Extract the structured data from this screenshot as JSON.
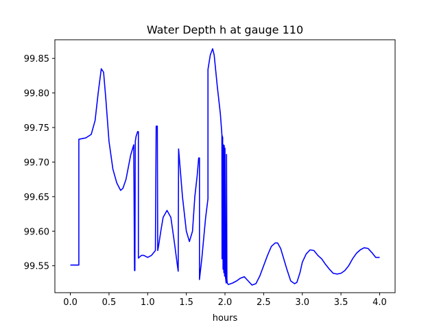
{
  "chart_data": {
    "type": "line",
    "title": "Water Depth h at gauge 110",
    "xlabel": "hours",
    "ylabel": "",
    "xlim": [
      -0.2,
      4.2
    ],
    "ylim": [
      99.511,
      99.877
    ],
    "x_ticks": [
      0.0,
      0.5,
      1.0,
      1.5,
      2.0,
      2.5,
      3.0,
      3.5,
      4.0
    ],
    "x_tick_labels": [
      "0.0",
      "0.5",
      "1.0",
      "1.5",
      "2.0",
      "2.5",
      "3.0",
      "3.5",
      "4.0"
    ],
    "y_ticks": [
      99.55,
      99.6,
      99.65,
      99.7,
      99.75,
      99.8,
      99.85
    ],
    "y_tick_labels": [
      "99.55",
      "99.60",
      "99.65",
      "99.70",
      "99.75",
      "99.80",
      "99.85"
    ],
    "grid": false,
    "colors": {
      "line": "#0000ff",
      "axes": "#000000",
      "background": "#ffffff"
    },
    "series": [
      {
        "x": [
          0.0,
          0.11,
          0.11,
          0.2,
          0.27,
          0.32,
          0.36,
          0.4,
          0.43,
          0.46,
          0.5,
          0.55,
          0.6,
          0.65,
          0.68,
          0.72,
          0.78,
          0.82,
          0.83,
          0.835,
          0.84,
          0.85,
          0.87,
          0.88,
          0.88,
          0.92,
          0.95,
          1.0,
          1.05,
          1.1,
          1.11,
          1.125,
          1.13,
          1.14,
          1.17,
          1.2,
          1.25,
          1.3,
          1.35,
          1.385,
          1.395,
          1.4,
          1.45,
          1.5,
          1.54,
          1.58,
          1.61,
          1.64,
          1.66,
          1.67,
          1.67,
          1.7,
          1.75,
          1.78,
          1.78,
          1.81,
          1.84,
          1.86,
          1.9,
          1.94,
          1.96,
          1.962,
          1.965,
          1.968,
          1.97,
          1.975,
          1.98,
          1.985,
          1.99,
          1.995,
          2.0,
          2.005,
          2.01,
          2.015,
          2.02,
          2.025,
          2.03,
          2.035,
          2.04,
          2.05,
          2.1,
          2.15,
          2.2,
          2.25,
          2.3,
          2.35,
          2.4,
          2.45,
          2.5,
          2.55,
          2.6,
          2.65,
          2.68,
          2.72,
          2.76,
          2.8,
          2.85,
          2.9,
          2.93,
          2.97,
          3.0,
          3.05,
          3.1,
          3.15,
          3.2,
          3.25,
          3.3,
          3.35,
          3.4,
          3.45,
          3.5,
          3.55,
          3.6,
          3.65,
          3.7,
          3.75,
          3.8,
          3.85,
          3.9,
          3.95,
          4.0
        ],
        "y": [
          99.551,
          99.551,
          99.733,
          99.735,
          99.74,
          99.76,
          99.8,
          99.835,
          99.83,
          99.79,
          99.73,
          99.69,
          99.67,
          99.659,
          99.662,
          99.675,
          99.71,
          99.725,
          99.543,
          99.543,
          99.73,
          99.737,
          99.744,
          99.744,
          99.561,
          99.565,
          99.565,
          99.562,
          99.565,
          99.572,
          99.752,
          99.752,
          99.572,
          99.578,
          99.6,
          99.62,
          99.63,
          99.62,
          99.58,
          99.55,
          99.542,
          99.719,
          99.65,
          99.6,
          99.585,
          99.6,
          99.65,
          99.68,
          99.706,
          99.706,
          99.53,
          99.56,
          99.62,
          99.647,
          99.834,
          99.855,
          99.864,
          99.855,
          99.81,
          99.77,
          99.74,
          99.56,
          99.738,
          99.56,
          99.736,
          99.545,
          99.725,
          99.54,
          99.724,
          99.535,
          99.72,
          99.535,
          99.53,
          99.525,
          99.711,
          99.53,
          99.525,
          99.524,
          99.523,
          99.523,
          99.525,
          99.528,
          99.532,
          99.534,
          99.528,
          99.522,
          99.524,
          99.535,
          99.55,
          99.565,
          99.578,
          99.583,
          99.583,
          99.575,
          99.56,
          99.545,
          99.528,
          99.524,
          99.526,
          99.54,
          99.555,
          99.567,
          99.573,
          99.572,
          99.565,
          99.56,
          99.552,
          99.545,
          99.539,
          99.538,
          99.539,
          99.543,
          99.55,
          99.56,
          99.568,
          99.573,
          99.576,
          99.575,
          99.569,
          99.562,
          99.562
        ]
      }
    ]
  }
}
